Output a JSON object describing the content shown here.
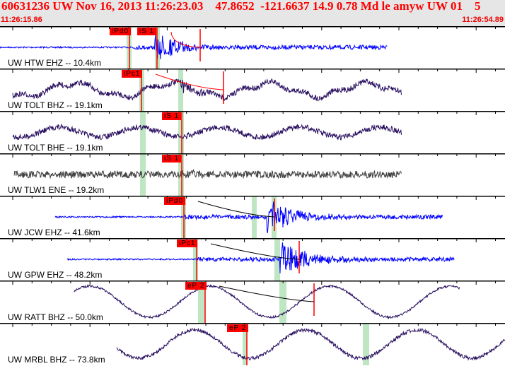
{
  "header": {
    "title": "60631236 UW Nov 16, 2013 11:26:23.03    47.8652  -121.6637 14.9 0.78 Md le amyw UW 01    5",
    "start_time": "11:26:15.86",
    "end_time": "11:26:54.89"
  },
  "traces": [
    {
      "label": "UW HTW EHZ -- 10.4km",
      "color": "#0000ff",
      "picks": [
        "iPd0",
        "iS 1"
      ]
    },
    {
      "label": "UW TOLT BHZ -- 19.1km",
      "color": "#2a1060",
      "picks": [
        "iPc1"
      ]
    },
    {
      "label": "UW TOLT BHE -- 19.1km",
      "color": "#2a1060",
      "picks": [
        "iS 1"
      ]
    },
    {
      "label": "UW TLW1 ENE -- 19.2km",
      "color": "#404040",
      "picks": [
        "iS 1"
      ]
    },
    {
      "label": "UW JCW EHZ -- 41.6km",
      "color": "#0000ff",
      "picks": [
        "iPd0"
      ]
    },
    {
      "label": "UW GPW EHZ -- 48.2km",
      "color": "#0000ff",
      "picks": [
        "iPc1"
      ]
    },
    {
      "label": "UW RATT BHZ -- 50.0km",
      "color": "#2a1060",
      "picks": [
        "eP 2"
      ]
    },
    {
      "label": "UW MRBL BHZ -- 73.8km",
      "color": "#2a1060",
      "picks": [
        "eP 2"
      ]
    }
  ],
  "colors": {
    "pick": "#ff0000",
    "window": "#bfe6c2",
    "header_bg": "#e6e6e6"
  }
}
